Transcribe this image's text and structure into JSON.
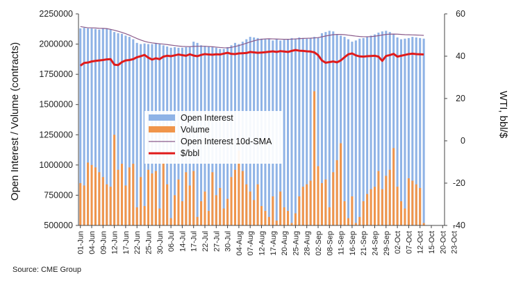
{
  "source_note": "Source: CME Group",
  "chart_data": {
    "type": "bar",
    "xlabel": "",
    "ylabel": "Open Interest / Volume (contracts)",
    "y2label": "WTI, bbl/$",
    "ylim": [
      500000,
      2250000
    ],
    "y2lim": [
      -40,
      60
    ],
    "y_ticks": [
      500000,
      750000,
      1000000,
      1250000,
      1500000,
      1750000,
      2000000,
      2250000
    ],
    "y2_ticks": [
      -40,
      -20,
      0,
      20,
      40,
      60
    ],
    "y_tick_labels": [
      "500000",
      "750000",
      "1000000",
      "1250000",
      "1500000",
      "1750000",
      "2000000",
      "2250000"
    ],
    "y2_tick_labels": [
      "-40",
      "-20",
      "0",
      "20",
      "40",
      "60"
    ],
    "x_tick_labels": [
      "01-Jun",
      "04-Jun",
      "09-Jun",
      "12-Jun",
      "17-Jun",
      "22-Jun",
      "25-Jun",
      "30-Jun",
      "06-Jul",
      "14-Jul",
      "17-Jul",
      "22-Jul",
      "27-Jul",
      "30-Jul",
      "04-Aug",
      "07-Aug",
      "12-Aug",
      "17-Aug",
      "20-Aug",
      "25-Aug",
      "28-Aug",
      "02-Sep",
      "08-Sep",
      "11-Sep",
      "16-Sep",
      "21-Sep",
      "24-Sep",
      "29-Sep",
      "02-Oct",
      "07-Oct",
      "12-Oct",
      "15-Oct",
      "20-Oct",
      "23-Oct"
    ],
    "legend_position": "center-left",
    "grid": false,
    "series": [
      {
        "name": "Open Interest",
        "type": "bar",
        "color": "#8fb3e6",
        "axis": "left",
        "values": [
          2130000,
          2135000,
          2130000,
          2130000,
          2125000,
          2120000,
          2130000,
          2130000,
          2120000,
          2100000,
          2090000,
          2085000,
          2070000,
          2060000,
          2040000,
          2010000,
          2000000,
          2005000,
          2000000,
          2000000,
          2010000,
          2000000,
          1990000,
          1980000,
          1970000,
          1975000,
          1970000,
          1970000,
          1975000,
          1975000,
          2020000,
          2010000,
          1990000,
          1985000,
          1980000,
          1975000,
          1970000,
          1960000,
          1960000,
          1975000,
          1990000,
          2010000,
          2000000,
          2020000,
          2040000,
          2060000,
          2055000,
          2050000,
          2045000,
          2040000,
          2040000,
          2030000,
          2040000,
          2030000,
          2035000,
          2040000,
          2050000,
          2045000,
          2055000,
          2050000,
          2045000,
          2050000,
          2060000,
          2055000,
          2090000,
          2100000,
          2110000,
          2105000,
          2080000,
          2070000,
          2060000,
          2040000,
          2020000,
          2030000,
          2045000,
          2050000,
          2060000,
          2070000,
          2080000,
          2095000,
          2105000,
          2110000,
          2100000,
          2080000,
          2055000,
          2040000,
          2045000,
          2050000,
          2060000,
          2055000,
          2050000,
          2045000
        ]
      },
      {
        "name": "Volume",
        "type": "bar",
        "color": "#f0954b",
        "axis": "left",
        "values": [
          850000,
          830000,
          1020000,
          1000000,
          980000,
          940000,
          900000,
          840000,
          820000,
          1250000,
          960000,
          1010000,
          830000,
          980000,
          1010000,
          650000,
          900000,
          660000,
          960000,
          930000,
          950000,
          640000,
          1020000,
          840000,
          560000,
          750000,
          880000,
          700000,
          940000,
          830000,
          950000,
          570000,
          700000,
          780000,
          620000,
          940000,
          750000,
          810000,
          640000,
          720000,
          900000,
          960000,
          1120000,
          950000,
          840000,
          780000,
          710000,
          840000,
          660000,
          620000,
          570000,
          740000,
          540000,
          780000,
          650000,
          620000,
          520000,
          600000,
          740000,
          820000,
          840000,
          870000,
          1610000,
          990000,
          850000,
          880000,
          650000,
          940000,
          1040000,
          1180000,
          700000,
          560000,
          740000,
          520000,
          570000,
          700000,
          760000,
          800000,
          820000,
          950000,
          800000,
          910000,
          960000,
          1140000,
          820000,
          700000,
          640000,
          890000,
          870000,
          840000,
          810000,
          520000
        ]
      },
      {
        "name": "Open Interest 10d-SMA",
        "type": "line",
        "color": "#8a5a8a",
        "axis": "left",
        "values": [
          2145000,
          2140000,
          2135000,
          2135000,
          2133000,
          2131000,
          2130000,
          2128000,
          2122000,
          2115000,
          2106000,
          2097000,
          2086000,
          2074000,
          2060000,
          2046000,
          2034000,
          2023000,
          2015000,
          2010000,
          2006000,
          2003000,
          2000000,
          1996000,
          1992000,
          1988000,
          1984000,
          1981000,
          1980000,
          1979000,
          1981000,
          1982000,
          1982000,
          1982000,
          1980000,
          1978000,
          1975000,
          1972000,
          1970000,
          1969000,
          1973000,
          1980000,
          1988000,
          1997000,
          2007000,
          2018000,
          2027000,
          2035000,
          2040000,
          2043000,
          2044000,
          2043000,
          2042000,
          2041000,
          2040000,
          2040000,
          2041000,
          2043000,
          2045000,
          2047000,
          2048000,
          2049000,
          2051000,
          2054000,
          2060000,
          2067000,
          2073000,
          2078000,
          2080000,
          2080000,
          2078000,
          2074000,
          2070000,
          2066000,
          2063000,
          2061000,
          2061000,
          2062000,
          2065000,
          2070000,
          2075000,
          2080000,
          2082000,
          2083000,
          2082000,
          2080000,
          2078000,
          2077000,
          2076000,
          2075000,
          2074000,
          2072000
        ]
      },
      {
        "name": "$/bbl",
        "type": "line",
        "color": "#e01b1b",
        "axis": "right",
        "values": [
          35.5,
          36.8,
          37.0,
          37.5,
          37.8,
          38.0,
          38.2,
          38.5,
          38.6,
          36.0,
          35.8,
          37.2,
          38.0,
          38.2,
          38.6,
          39.5,
          40.0,
          40.6,
          39.3,
          38.4,
          39.0,
          38.6,
          39.8,
          40.2,
          40.0,
          40.4,
          40.8,
          40.5,
          40.2,
          40.9,
          40.3,
          40.0,
          40.6,
          41.0,
          40.8,
          40.7,
          40.9,
          40.8,
          41.2,
          41.6,
          41.1,
          41.0,
          41.3,
          41.4,
          41.5,
          42.0,
          41.8,
          41.6,
          41.7,
          41.9,
          42.1,
          42.3,
          42.0,
          42.4,
          42.2,
          42.0,
          42.5,
          42.9,
          42.6,
          42.5,
          42.3,
          42.2,
          41.8,
          40.5,
          38.0,
          36.9,
          37.2,
          37.5,
          37.1,
          38.0,
          39.5,
          40.9,
          41.3,
          40.4,
          39.9,
          39.8,
          40.0,
          40.1,
          40.2,
          39.8,
          37.8,
          40.1,
          40.5,
          41.1,
          39.8,
          40.2,
          40.6,
          41.0,
          41.2,
          41.0,
          40.9,
          40.8
        ]
      }
    ]
  }
}
